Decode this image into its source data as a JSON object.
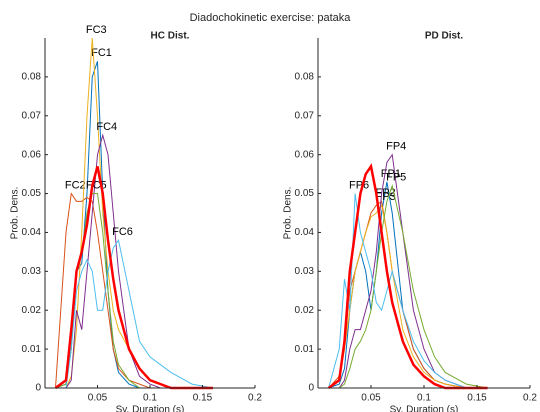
{
  "title": "Diadochokinetic exercise: pataka",
  "chart_data": [
    {
      "type": "line",
      "title": "HC Dist.",
      "xlabel": "Sy. Duration (s)",
      "ylabel": "Prob. Dens.",
      "xlim": [
        0,
        0.2
      ],
      "ylim": [
        0,
        0.09
      ],
      "xticks": [
        0.05,
        0.1,
        0.15,
        0.2
      ],
      "yticks": [
        0,
        0.01,
        0.02,
        0.03,
        0.04,
        0.05,
        0.06,
        0.07,
        0.08
      ],
      "x": [
        0.01,
        0.02,
        0.025,
        0.03,
        0.035,
        0.04,
        0.045,
        0.05,
        0.055,
        0.06,
        0.065,
        0.07,
        0.08,
        0.09,
        0.1,
        0.11,
        0.12,
        0.14,
        0.16
      ],
      "series": [
        {
          "name": "FC1",
          "color": "#0072bd",
          "values": [
            0,
            0.001,
            0.01,
            0.03,
            0.032,
            0.05,
            0.08,
            0.084,
            0.05,
            0.025,
            0.01,
            0.004,
            0.001,
            0,
            0,
            0,
            0,
            0,
            0
          ]
        },
        {
          "name": "FC2",
          "color": "#d95319",
          "values": [
            0,
            0.04,
            0.05,
            0.048,
            0.048,
            0.049,
            0.048,
            0.04,
            0.03,
            0.02,
            0.01,
            0.005,
            0.002,
            0.001,
            0,
            0,
            0,
            0,
            0
          ]
        },
        {
          "name": "FC3",
          "color": "#edb120",
          "values": [
            0,
            0,
            0.003,
            0.015,
            0.04,
            0.07,
            0.09,
            0.07,
            0.045,
            0.03,
            0.02,
            0.015,
            0.01,
            0.005,
            0.002,
            0.001,
            0,
            0,
            0
          ]
        },
        {
          "name": "FC4",
          "color": "#7e2f8e",
          "values": [
            0,
            0,
            0.002,
            0.02,
            0.015,
            0.03,
            0.045,
            0.06,
            0.065,
            0.06,
            0.045,
            0.03,
            0.01,
            0.003,
            0.001,
            0,
            0,
            0,
            0
          ]
        },
        {
          "name": "FC5",
          "color": "#77ac30",
          "values": [
            0,
            0.001,
            0.01,
            0.03,
            0.035,
            0.045,
            0.05,
            0.05,
            0.04,
            0.025,
            0.012,
            0.006,
            0.002,
            0,
            0,
            0,
            0,
            0,
            0
          ]
        },
        {
          "name": "FC6",
          "color": "#4dbeee",
          "values": [
            0,
            0,
            0.01,
            0.025,
            0.03,
            0.033,
            0.03,
            0.02,
            0.02,
            0.03,
            0.036,
            0.038,
            0.025,
            0.012,
            0.008,
            0.006,
            0.004,
            0.001,
            0
          ]
        },
        {
          "color": "#ff0000",
          "values": [
            0,
            0.002,
            0.015,
            0.03,
            0.035,
            0.042,
            0.052,
            0.057,
            0.05,
            0.038,
            0.028,
            0.02,
            0.01,
            0.005,
            0.002,
            0.001,
            0,
            0,
            0
          ]
        }
      ]
    },
    {
      "type": "line",
      "title": "PD Dist.",
      "xlabel": "Sy. Duration (s)",
      "ylabel": "Prob. Dens.",
      "xlim": [
        0,
        0.2
      ],
      "ylim": [
        0,
        0.09
      ],
      "xticks": [
        0.05,
        0.1,
        0.15,
        0.2
      ],
      "yticks": [
        0,
        0.01,
        0.02,
        0.03,
        0.04,
        0.05,
        0.06,
        0.07,
        0.08
      ],
      "x": [
        0.01,
        0.02,
        0.025,
        0.03,
        0.035,
        0.04,
        0.045,
        0.05,
        0.055,
        0.06,
        0.065,
        0.07,
        0.08,
        0.09,
        0.1,
        0.11,
        0.12,
        0.14,
        0.16
      ],
      "series": [
        {
          "name": "FP1",
          "color": "#0072bd",
          "values": [
            0,
            0.001,
            0.005,
            0.02,
            0.03,
            0.035,
            0.03,
            0.02,
            0.03,
            0.045,
            0.053,
            0.045,
            0.02,
            0.01,
            0.005,
            0.002,
            0.001,
            0,
            0
          ]
        },
        {
          "name": "FP2",
          "color": "#d95319",
          "values": [
            0,
            0.003,
            0.01,
            0.025,
            0.03,
            0.035,
            0.04,
            0.045,
            0.047,
            0.048,
            0.04,
            0.03,
            0.02,
            0.01,
            0.005,
            0.002,
            0.001,
            0,
            0
          ]
        },
        {
          "name": "FP3",
          "color": "#edb120",
          "values": [
            0,
            0.002,
            0.01,
            0.02,
            0.03,
            0.035,
            0.04,
            0.044,
            0.045,
            0.047,
            0.04,
            0.03,
            0.015,
            0.008,
            0.004,
            0.002,
            0.001,
            0,
            0
          ]
        },
        {
          "name": "FP4",
          "color": "#7e2f8e",
          "values": [
            0,
            0,
            0.002,
            0.01,
            0.015,
            0.015,
            0.02,
            0.025,
            0.035,
            0.05,
            0.058,
            0.06,
            0.04,
            0.02,
            0.01,
            0.004,
            0.002,
            0,
            0
          ]
        },
        {
          "name": "FP5",
          "color": "#77ac30",
          "values": [
            0,
            0,
            0.001,
            0.005,
            0.01,
            0.012,
            0.015,
            0.02,
            0.03,
            0.04,
            0.048,
            0.052,
            0.04,
            0.025,
            0.015,
            0.008,
            0.004,
            0.001,
            0
          ]
        },
        {
          "name": "FP6",
          "color": "#4dbeee",
          "values": [
            0,
            0.01,
            0.028,
            0.02,
            0.05,
            0.04,
            0.035,
            0.03,
            0.022,
            0.02,
            0.025,
            0.03,
            0.02,
            0.012,
            0.007,
            0.004,
            0.002,
            0,
            0
          ]
        },
        {
          "color": "#ff0000",
          "values": [
            0,
            0.002,
            0.012,
            0.03,
            0.04,
            0.05,
            0.055,
            0.057,
            0.05,
            0.04,
            0.03,
            0.022,
            0.012,
            0.006,
            0.003,
            0.001,
            0,
            0,
            0
          ]
        }
      ]
    }
  ]
}
